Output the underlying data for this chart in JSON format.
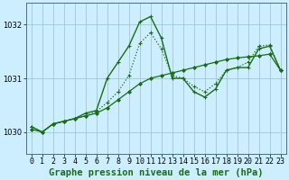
{
  "title": "Graphe pression niveau de la mer (hPa)",
  "xlim": [
    -0.5,
    23.5
  ],
  "ylim": [
    1029.6,
    1032.4
  ],
  "yticks": [
    1030,
    1031,
    1032
  ],
  "background_color": "#cceeff",
  "grid_color": "#99cccc",
  "line_color": "#1a6b1a",
  "series1_x": [
    0,
    1,
    2,
    3,
    4,
    5,
    6,
    7,
    8,
    9,
    10,
    11,
    12,
    13,
    14,
    15,
    16,
    17,
    18,
    19,
    20,
    21,
    22,
    23
  ],
  "series1_y": [
    1030.05,
    1030.0,
    1030.15,
    1030.2,
    1030.25,
    1030.3,
    1030.35,
    1030.45,
    1030.6,
    1030.75,
    1030.9,
    1031.0,
    1031.05,
    1031.1,
    1031.15,
    1031.2,
    1031.25,
    1031.3,
    1031.35,
    1031.38,
    1031.4,
    1031.42,
    1031.45,
    1031.15
  ],
  "series2_x": [
    0,
    1,
    2,
    3,
    4,
    5,
    6,
    7,
    8,
    9,
    10,
    11,
    12,
    13,
    14,
    15,
    16,
    17,
    18,
    19,
    20,
    21,
    22,
    23
  ],
  "series2_y": [
    1030.1,
    1030.0,
    1030.15,
    1030.2,
    1030.25,
    1030.3,
    1030.38,
    1030.55,
    1030.75,
    1031.05,
    1031.65,
    1031.85,
    1031.55,
    1031.05,
    1031.0,
    1030.85,
    1030.75,
    1030.9,
    1031.15,
    1031.2,
    1031.3,
    1031.6,
    1031.62,
    1031.15
  ],
  "series3_x": [
    0,
    1,
    2,
    3,
    4,
    5,
    6,
    7,
    8,
    9,
    10,
    11,
    12,
    13,
    14,
    15,
    16,
    17,
    18,
    19,
    20,
    21,
    22,
    23
  ],
  "series3_y": [
    1030.1,
    1030.0,
    1030.15,
    1030.2,
    1030.25,
    1030.35,
    1030.4,
    1031.0,
    1031.3,
    1031.6,
    1032.05,
    1032.15,
    1031.75,
    1031.0,
    1031.0,
    1030.75,
    1030.65,
    1030.8,
    1031.15,
    1031.2,
    1031.2,
    1031.55,
    1031.6,
    1031.15
  ],
  "title_fontsize": 7.5,
  "tick_fontsize": 6.0
}
